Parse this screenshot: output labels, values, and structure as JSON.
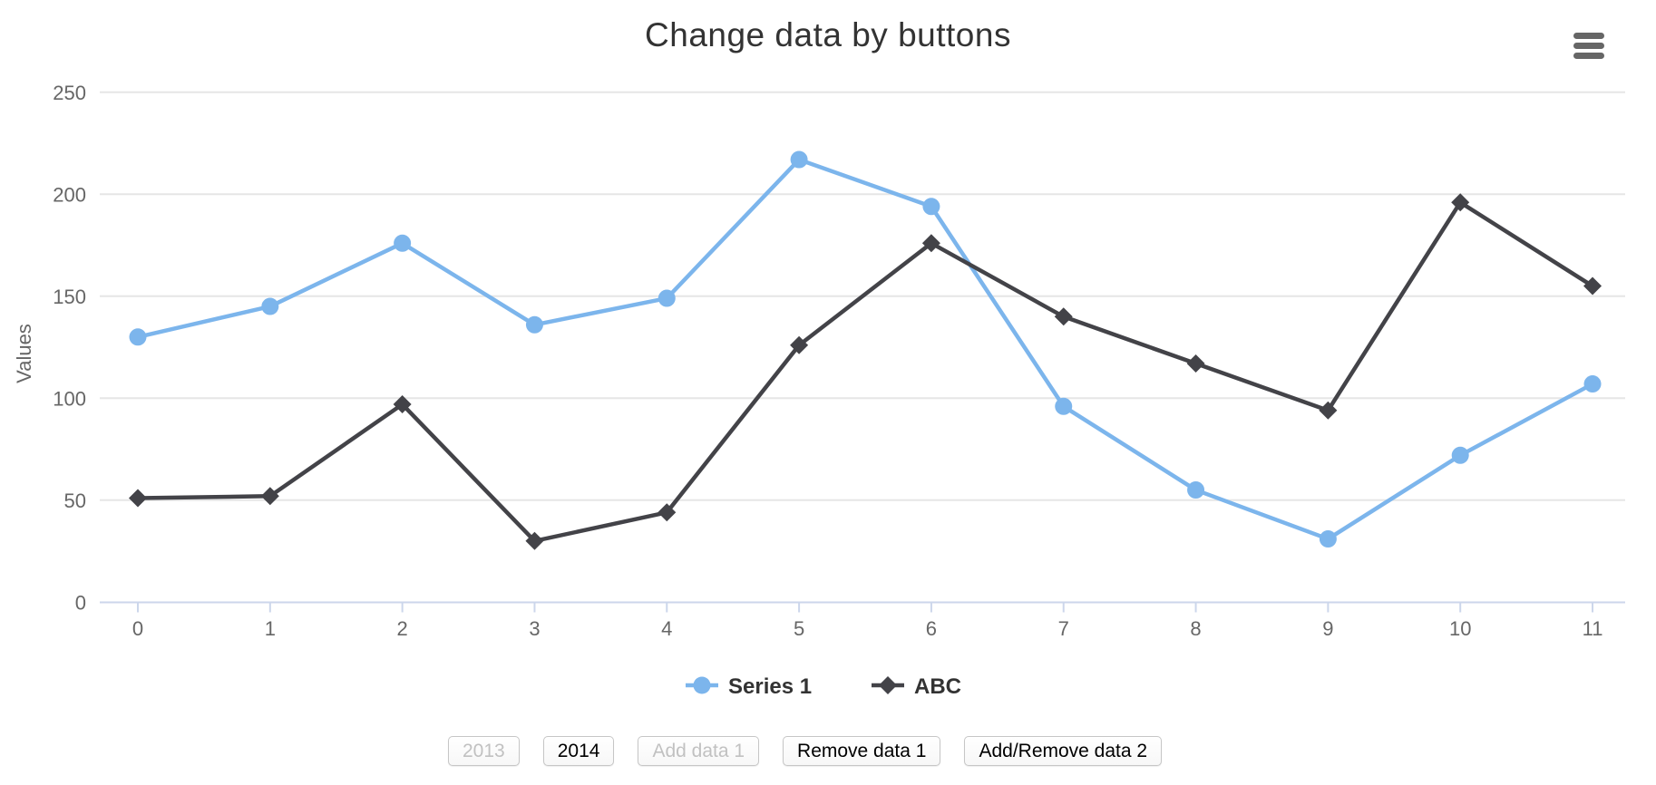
{
  "chart_data": {
    "type": "line",
    "title": "Change data by buttons",
    "xlabel": "",
    "ylabel": "Values",
    "x": [
      0,
      1,
      2,
      3,
      4,
      5,
      6,
      7,
      8,
      9,
      10,
      11
    ],
    "xticks": [
      "0",
      "1",
      "2",
      "3",
      "4",
      "5",
      "6",
      "7",
      "8",
      "9",
      "10",
      "11"
    ],
    "yticks": [
      0,
      50,
      100,
      150,
      200,
      250
    ],
    "ylim": [
      0,
      250
    ],
    "grid": true,
    "legend_position": "bottom",
    "series": [
      {
        "name": "Series 1",
        "color": "#7cb5ec",
        "marker": "circle",
        "values": [
          130,
          145,
          176,
          136,
          149,
          217,
          194,
          96,
          55,
          31,
          72,
          107
        ]
      },
      {
        "name": "ABC",
        "color": "#434348",
        "marker": "diamond",
        "values": [
          51,
          52,
          97,
          30,
          44,
          126,
          176,
          140,
          117,
          94,
          196,
          155
        ]
      }
    ],
    "colors": {
      "grid_line": "#e6e6e6",
      "axis_line": "#ccd6eb",
      "axis_label": "#666666",
      "title_text": "#333333",
      "legend_text": "#333333",
      "menu_icon": "#666666"
    }
  },
  "menu": {
    "icon": "hamburger-menu-icon"
  },
  "buttons": [
    {
      "label": "2013",
      "enabled": false
    },
    {
      "label": "2014",
      "enabled": true
    },
    {
      "label": "Add data 1",
      "enabled": false
    },
    {
      "label": "Remove data 1",
      "enabled": true
    },
    {
      "label": "Add/Remove data 2",
      "enabled": true
    }
  ]
}
